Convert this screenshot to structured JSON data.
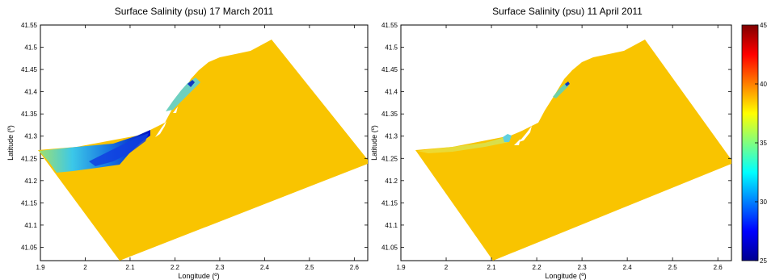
{
  "colors": {
    "background": "#ffffff",
    "sea_salinity": "#F9C400",
    "land": "#ffffff",
    "axis": "#000000"
  },
  "colorbar": {
    "min": 25,
    "max": 45,
    "ticks": [
      "25",
      "30",
      "35",
      "40",
      "45"
    ]
  },
  "maps": [
    {
      "title": "Surface Salinity (psu) 17 March 2011",
      "xlabel": "Longitude (º)",
      "ylabel": "Latitude (º)",
      "xlim": [
        1.9,
        2.63
      ],
      "ylim": [
        41.02,
        41.55
      ],
      "xticks": [
        "1.9",
        "2",
        "2.1",
        "2.2",
        "2.3",
        "2.4",
        "2.5",
        "2.6"
      ],
      "yticks": [
        "41.05",
        "41.1",
        "41.15",
        "41.2",
        "41.25",
        "41.3",
        "41.35",
        "41.4",
        "41.45",
        "41.5",
        "41.55"
      ]
    },
    {
      "title": "Surface Salinity (psu) 11 April 2011",
      "xlabel": "Longitude (º)",
      "ylabel": "Latitude (º)",
      "xlim": [
        1.9,
        2.63
      ],
      "ylim": [
        41.02,
        41.55
      ],
      "xticks": [
        "1.9",
        "2",
        "2.1",
        "2.2",
        "2.3",
        "2.4",
        "2.5",
        "2.6"
      ],
      "yticks": [
        "41.05",
        "41.1",
        "41.15",
        "41.2",
        "41.25",
        "41.3",
        "41.35",
        "41.4",
        "41.45",
        "41.5",
        "41.55"
      ]
    }
  ]
}
